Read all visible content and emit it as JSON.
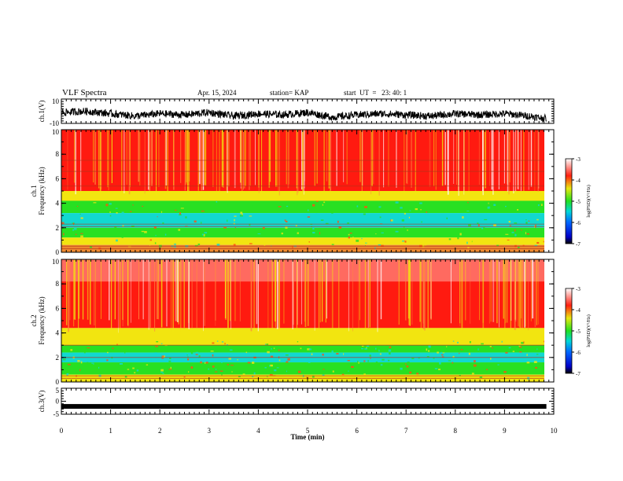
{
  "header": {
    "title": "VLF Spectra",
    "date": "Apr. 15, 2024",
    "station": "station= KAP",
    "start": "start  UT  =   23: 40: 1"
  },
  "colorbar": {
    "label": "log(PSD)(V²/Hz)",
    "ticks": [
      "-3",
      "-4",
      "-5",
      "-6",
      "-7"
    ],
    "range": [
      -7,
      -3
    ]
  },
  "colors": {
    "red": "#ff1a10",
    "yellow": "#f2e510",
    "green": "#28e022",
    "cyan": "#12d8d0"
  },
  "chart_data": [
    {
      "type": "line",
      "panel": "ch1-waveform",
      "ylabel": "ch.1(V)",
      "ylim": [
        -10,
        10
      ],
      "yticks": [
        "10",
        "-10"
      ],
      "xlim": [
        0,
        10
      ],
      "x": [
        0,
        0.5,
        1,
        1.5,
        2,
        2.5,
        3,
        3.5,
        4,
        4.5,
        5,
        5.5,
        6,
        6.5,
        7,
        7.5,
        8,
        8.5,
        9,
        9.5,
        9.85
      ],
      "y": [
        -1,
        0,
        -2,
        -4,
        -2,
        -3,
        -1,
        -4,
        -2,
        -3,
        -1,
        -5,
        -3,
        -2,
        -3,
        -4,
        -2,
        -3,
        -2,
        -4,
        -6
      ]
    },
    {
      "type": "heatmap",
      "panel": "ch1-spectrogram",
      "ylabel": "ch.1\nFrequency (kHz)",
      "ylim": [
        0,
        10
      ],
      "yticks": [
        "0",
        "2",
        "4",
        "6",
        "8",
        "10"
      ],
      "xlim": [
        0,
        10
      ]
    },
    {
      "type": "heatmap",
      "panel": "ch2-spectrogram",
      "ylabel": "ch.2\nFrequency (kHz)",
      "ylim": [
        0,
        10
      ],
      "yticks": [
        "0",
        "2",
        "4",
        "6",
        "8",
        "10"
      ],
      "xlim": [
        0,
        10
      ]
    },
    {
      "type": "line",
      "panel": "ch3-waveform",
      "ylabel": "ch.3(V)",
      "ylim": [
        -5,
        5
      ],
      "yticks": [
        "5",
        "0",
        "-5"
      ],
      "xlim": [
        0,
        10
      ],
      "x": [
        0,
        9.85
      ],
      "y": [
        -2,
        -2
      ]
    }
  ],
  "xaxis": {
    "label": "Time (min)",
    "ticks": [
      "0",
      "1",
      "2",
      "3",
      "4",
      "5",
      "6",
      "7",
      "8",
      "9",
      "10"
    ]
  }
}
